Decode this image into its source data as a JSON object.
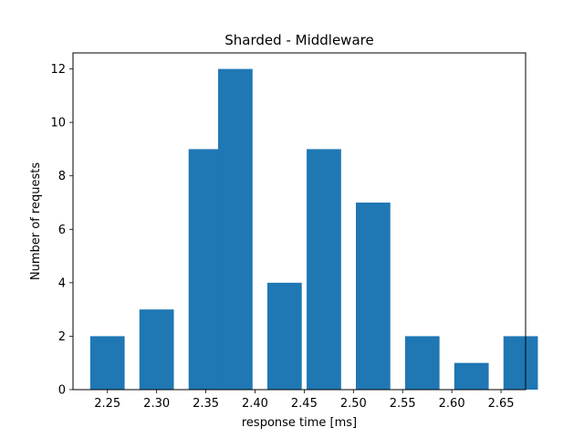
{
  "chart_data": {
    "type": "bar",
    "title": "Sharded - Middleware",
    "xlabel": "response time [ms]",
    "ylabel": "Number of requests",
    "x": [
      2.25,
      2.3,
      2.35,
      2.38,
      2.43,
      2.47,
      2.52,
      2.57,
      2.62,
      2.67
    ],
    "values": [
      2,
      3,
      9,
      12,
      4,
      9,
      7,
      2,
      1,
      2
    ],
    "bar_width": 0.035,
    "xlim": [
      2.215,
      2.675
    ],
    "ylim": [
      0,
      12.6
    ],
    "xticks": [
      2.25,
      2.3,
      2.35,
      2.4,
      2.45,
      2.5,
      2.55,
      2.6,
      2.65
    ],
    "xtick_labels": [
      "2.25",
      "2.30",
      "2.35",
      "2.40",
      "2.45",
      "2.50",
      "2.55",
      "2.60",
      "2.65"
    ],
    "yticks": [
      0,
      2,
      4,
      6,
      8,
      10,
      12
    ],
    "ytick_labels": [
      "0",
      "2",
      "4",
      "6",
      "8",
      "10",
      "12"
    ],
    "bar_color": "#1f77b4",
    "grid": false,
    "legend": "none"
  }
}
